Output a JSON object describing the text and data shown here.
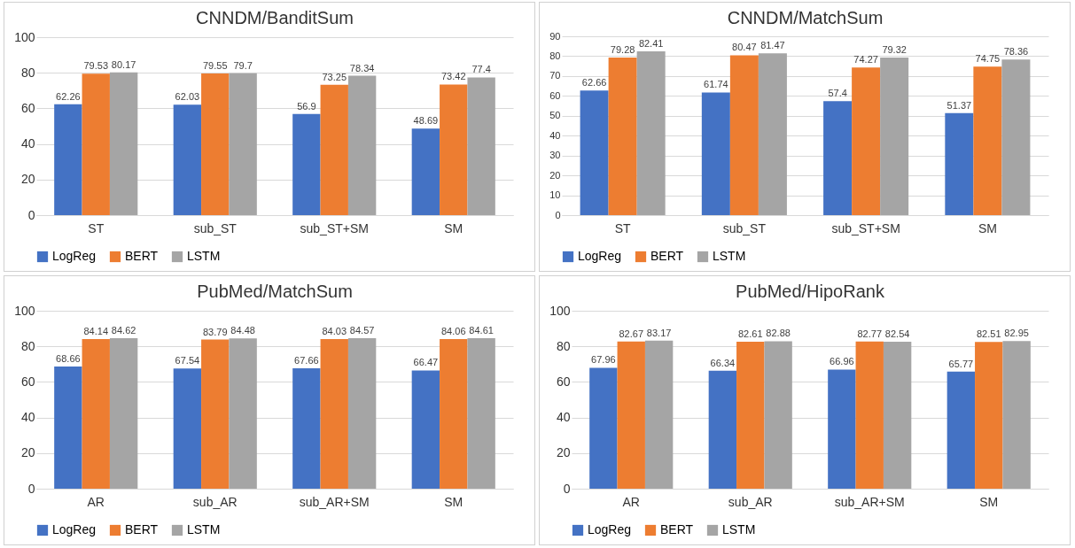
{
  "chart_data": [
    {
      "type": "bar",
      "title": "CNNDM/BanditSum",
      "categories": [
        "ST",
        "sub_ST",
        "sub_ST+SM",
        "SM"
      ],
      "series": [
        {
          "name": "LogReg",
          "color": "#4472c4",
          "values": [
            62.26,
            62.03,
            56.9,
            48.69
          ]
        },
        {
          "name": "BERT",
          "color": "#ed7d31",
          "values": [
            79.53,
            79.55,
            73.25,
            73.42
          ]
        },
        {
          "name": "LSTM",
          "color": "#a5a5a5",
          "values": [
            80.17,
            79.7,
            78.34,
            77.4
          ]
        }
      ],
      "ylim": [
        0,
        100
      ],
      "yticks": [
        0,
        20,
        40,
        60,
        80,
        100
      ],
      "grid": "y",
      "legend": "bottom",
      "data_labels": true
    },
    {
      "type": "bar",
      "title": "CNNDM/MatchSum",
      "categories": [
        "ST",
        "sub_ST",
        "sub_ST+SM",
        "SM"
      ],
      "series": [
        {
          "name": "LogReg",
          "color": "#4472c4",
          "values": [
            62.66,
            61.74,
            57.4,
            51.37
          ]
        },
        {
          "name": "BERT",
          "color": "#ed7d31",
          "values": [
            79.28,
            80.47,
            74.27,
            74.75
          ]
        },
        {
          "name": "LSTM",
          "color": "#a5a5a5",
          "values": [
            82.41,
            81.47,
            79.32,
            78.36
          ]
        }
      ],
      "ylim": [
        0,
        90
      ],
      "yticks": [
        0,
        10,
        20,
        30,
        40,
        50,
        60,
        70,
        80,
        90
      ],
      "grid": "y",
      "legend": "bottom",
      "data_labels": true
    },
    {
      "type": "bar",
      "title": "PubMed/MatchSum",
      "categories": [
        "AR",
        "sub_AR",
        "sub_AR+SM",
        "SM"
      ],
      "series": [
        {
          "name": "LogReg",
          "color": "#4472c4",
          "values": [
            68.66,
            67.54,
            67.66,
            66.47
          ]
        },
        {
          "name": "BERT",
          "color": "#ed7d31",
          "values": [
            84.14,
            83.79,
            84.03,
            84.06
          ]
        },
        {
          "name": "LSTM",
          "color": "#a5a5a5",
          "values": [
            84.62,
            84.48,
            84.57,
            84.61
          ]
        }
      ],
      "ylim": [
        0,
        100
      ],
      "yticks": [
        0,
        20,
        40,
        60,
        80,
        100
      ],
      "grid": "y",
      "legend": "bottom",
      "data_labels": true
    },
    {
      "type": "bar",
      "title": "PubMed/HipoRank",
      "categories": [
        "AR",
        "sub_AR",
        "sub_AR+SM",
        "SM"
      ],
      "series": [
        {
          "name": "LogReg",
          "color": "#4472c4",
          "values": [
            67.96,
            66.34,
            66.96,
            65.77
          ]
        },
        {
          "name": "BERT",
          "color": "#ed7d31",
          "values": [
            82.67,
            82.61,
            82.77,
            82.51
          ]
        },
        {
          "name": "LSTM",
          "color": "#a5a5a5",
          "values": [
            83.17,
            82.88,
            82.54,
            82.95
          ]
        }
      ],
      "ylim": [
        0,
        100
      ],
      "yticks": [
        0,
        20,
        40,
        60,
        80,
        100
      ],
      "grid": "y",
      "legend": "bottom",
      "data_labels": true
    }
  ]
}
